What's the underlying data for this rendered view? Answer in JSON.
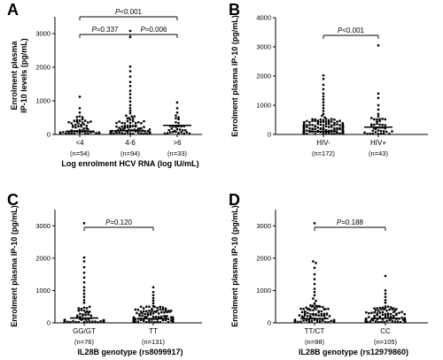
{
  "chart_data": [
    {
      "id": "A",
      "type": "scatter",
      "panel_label": "A",
      "ylabel_lines": [
        "Enrolment plasma",
        "IP-10 levels (pg/mL)"
      ],
      "xlabel": "Log enrolment HCV RNA (log IU/mL)",
      "ylim": [
        0,
        3500
      ],
      "yticks": [
        0,
        1000,
        2000,
        3000
      ],
      "ytick_labels": [
        "0",
        "1000",
        "2000",
        "3000"
      ],
      "categories": [
        "<4",
        "4-6",
        ">6"
      ],
      "n_labels": [
        "(n=54)",
        "(n=94)",
        "(n=33)"
      ],
      "counts": [
        54,
        94,
        33
      ],
      "medians": [
        95,
        110,
        270
      ],
      "high_values": [
        [
          1120,
          780,
          650,
          520,
          430
        ],
        [
          3080,
          2900,
          2020,
          1880,
          1720,
          1560,
          1440,
          1300,
          1200,
          1090,
          980,
          870,
          780,
          700,
          630,
          560
        ],
        [
          950,
          780,
          650,
          560,
          480
        ]
      ],
      "comparisons": [
        {
          "p_prefix": "P",
          "p_text": "<0.001",
          "from": 0,
          "to": 2,
          "level": 2
        },
        {
          "p_prefix": "P",
          "p_text": "=0.337",
          "from": 0,
          "to": 1,
          "level": 1
        },
        {
          "p_prefix": "P",
          "p_text": "=0.006",
          "from": 1,
          "to": 2,
          "level": 1
        }
      ]
    },
    {
      "id": "B",
      "type": "scatter",
      "panel_label": "B",
      "ylabel_lines": [
        "Enrolment plasma IP-10 (pg/mL)"
      ],
      "xlabel": "",
      "ylim": [
        0,
        4000
      ],
      "yticks": [
        0,
        1000,
        2000,
        3000,
        4000
      ],
      "ytick_labels": [
        "0",
        "1000",
        "2000",
        "3000",
        "4000"
      ],
      "categories": [
        "HIV-",
        "HIV+"
      ],
      "n_labels": [
        "(n=172)",
        "(n=43)"
      ],
      "counts": [
        172,
        43
      ],
      "medians": [
        100,
        250
      ],
      "high_values": [
        [
          2020,
          1900,
          1700,
          1550,
          1400,
          1300,
          1200,
          1100,
          1000,
          900,
          800,
          700,
          640,
          580
        ],
        [
          3050,
          1400,
          1250,
          1000,
          850,
          700,
          620,
          560
        ]
      ],
      "comparisons": [
        {
          "p_prefix": "P",
          "p_text": "<0.001",
          "from": 0,
          "to": 1,
          "level": 1
        }
      ]
    },
    {
      "id": "C",
      "type": "scatter",
      "panel_label": "C",
      "ylabel_lines": [
        "Enrolment plasma IP-10 (pg/mL)"
      ],
      "xlabel": "IL28B genotype (rs8099917)",
      "ylim": [
        0,
        3500
      ],
      "yticks": [
        0,
        1000,
        2000,
        3000
      ],
      "ytick_labels": [
        "0",
        "1000",
        "2000",
        "3000"
      ],
      "categories": [
        "GG/GT",
        "TT"
      ],
      "n_labels": [
        "(n=76)",
        "(n=131)"
      ],
      "counts": [
        76,
        131
      ],
      "medians": [
        150,
        130
      ],
      "high_values": [
        [
          3080,
          2020,
          1900,
          1720,
          1550,
          1400,
          1250,
          1100,
          1000,
          900,
          800,
          700,
          620
        ],
        [
          1100,
          950,
          850,
          760,
          680,
          600
        ]
      ],
      "comparisons": [
        {
          "p_prefix": "P",
          "p_text": "=0.120",
          "from": 0,
          "to": 1,
          "level": 1
        }
      ]
    },
    {
      "id": "D",
      "type": "scatter",
      "panel_label": "D",
      "ylabel_lines": [
        "Enrolment plasma IP-10 (pg/mL)"
      ],
      "xlabel": "IL28B genotype (rs12979860)",
      "ylim": [
        0,
        3500
      ],
      "yticks": [
        0,
        1000,
        2000,
        3000
      ],
      "ytick_labels": [
        "0",
        "1000",
        "2000",
        "3000"
      ],
      "categories": [
        "TT/CT",
        "CC"
      ],
      "n_labels": [
        "(n=98)",
        "(n=105)"
      ],
      "counts": [
        98,
        105
      ],
      "medians": [
        130,
        140
      ],
      "high_values": [
        [
          3080,
          1900,
          1850,
          1700,
          1500,
          1350,
          1200,
          1050,
          950,
          850,
          750,
          680,
          600
        ],
        [
          1450,
          1000,
          900,
          800,
          700,
          620
        ]
      ],
      "comparisons": [
        {
          "p_prefix": "P",
          "p_text": "=0.188",
          "from": 0,
          "to": 1,
          "level": 1
        }
      ]
    }
  ]
}
